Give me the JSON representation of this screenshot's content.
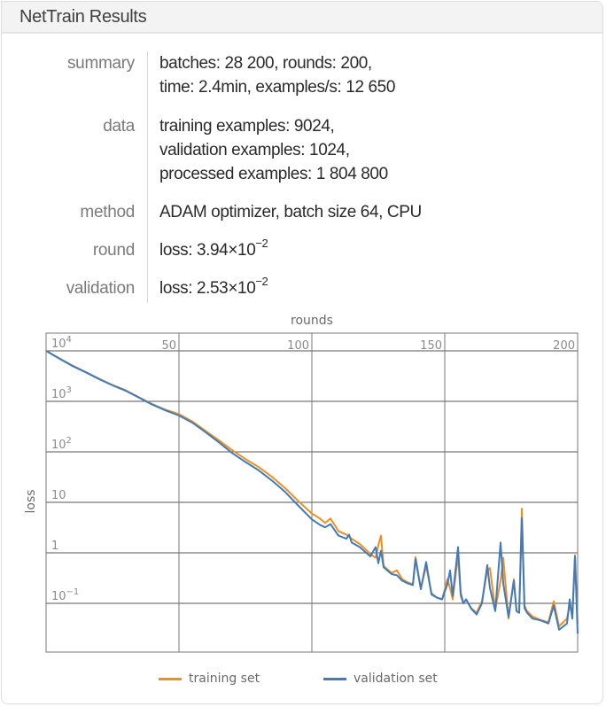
{
  "window": {
    "title": "NetTrain Results"
  },
  "info": {
    "rows": [
      {
        "label": "summary",
        "lines": [
          "batches: 28 200, rounds: 200,",
          "time: 2.4min, examples/s: 12 650"
        ]
      },
      {
        "label": "data",
        "lines": [
          "training examples: 9024,",
          "validation examples: 1024,",
          "processed examples: 1 804 800"
        ]
      },
      {
        "label": "method",
        "lines": [
          "ADAM optimizer, batch size 64, CPU"
        ]
      },
      {
        "label": "round",
        "prefix": "loss: 3.94×10",
        "exponent": "−2"
      },
      {
        "label": "validation",
        "prefix": "loss: 2.53×10",
        "exponent": "−2"
      }
    ]
  },
  "colors": {
    "training": "#f28e1c",
    "validation": "#3e7bbf",
    "grid": "#555555",
    "frame": "#777777",
    "tick": "#8a8a8a"
  },
  "chart_data": {
    "type": "line",
    "title": "",
    "xlabel": "rounds",
    "ylabel": "loss",
    "xscale": "linear",
    "yscale": "log",
    "xlim": [
      0,
      200
    ],
    "ylim": [
      0.01,
      20000
    ],
    "x_ticks": [
      50,
      100,
      150,
      200
    ],
    "y_ticks": [
      {
        "value": 10000,
        "base": "10",
        "exp": "4"
      },
      {
        "value": 1000,
        "base": "10",
        "exp": "3"
      },
      {
        "value": 100,
        "base": "10",
        "exp": "2"
      },
      {
        "value": 10,
        "base": "10",
        "exp": ""
      },
      {
        "value": 1,
        "base": "1",
        "exp": ""
      },
      {
        "value": 0.1,
        "base": "10",
        "exp": "−1"
      }
    ],
    "grid": true,
    "legend_position": "bottom",
    "series": [
      {
        "name": "training set",
        "color": "#f28e1c",
        "x": [
          0,
          5,
          10,
          15,
          20,
          25,
          30,
          35,
          40,
          45,
          50,
          55,
          60,
          65,
          70,
          75,
          80,
          85,
          90,
          95,
          100,
          103,
          105,
          107,
          110,
          113,
          115,
          118,
          120,
          122,
          124,
          125,
          126,
          127,
          130,
          132,
          134,
          136,
          138,
          139,
          141,
          143,
          145,
          147,
          149,
          151,
          152,
          153,
          155,
          156,
          157,
          158,
          160,
          162,
          164,
          166,
          167,
          169,
          171,
          172,
          174,
          176,
          177,
          178,
          179,
          180,
          181,
          183,
          186,
          189,
          191,
          193,
          196,
          197,
          198,
          199,
          200
        ],
        "values": [
          10000,
          7100,
          5100,
          3800,
          2800,
          2100,
          1650,
          1200,
          880,
          680,
          560,
          400,
          260,
          170,
          108,
          72,
          50,
          32,
          19,
          10.5,
          6.0,
          4.8,
          3.9,
          4.8,
          2.7,
          2.3,
          1.9,
          1.5,
          1.2,
          0.95,
          0.8,
          1.4,
          2.2,
          0.55,
          0.4,
          0.45,
          0.3,
          0.26,
          0.24,
          0.82,
          0.2,
          0.55,
          0.16,
          0.13,
          0.12,
          0.3,
          0.2,
          0.12,
          0.9,
          0.14,
          0.1,
          0.12,
          0.08,
          0.065,
          0.11,
          0.45,
          0.5,
          0.075,
          0.28,
          0.8,
          0.05,
          0.3,
          0.07,
          0.065,
          7.5,
          0.09,
          0.07,
          0.055,
          0.047,
          0.042,
          0.11,
          0.035,
          0.05,
          0.09,
          0.06,
          0.9,
          0.0394
        ]
      },
      {
        "name": "validation set",
        "color": "#3e7bbf",
        "x": [
          0,
          5,
          10,
          15,
          20,
          25,
          30,
          35,
          40,
          45,
          50,
          55,
          60,
          65,
          70,
          75,
          80,
          85,
          90,
          95,
          100,
          103,
          105,
          107,
          110,
          113,
          114,
          115,
          118,
          120,
          122,
          124,
          125,
          126,
          127,
          130,
          132,
          134,
          136,
          138,
          139,
          141,
          143,
          145,
          147,
          149,
          151,
          152,
          153,
          155,
          156,
          157,
          158,
          160,
          162,
          164,
          166,
          167,
          169,
          171,
          172,
          174,
          176,
          177,
          178,
          179,
          180,
          181,
          183,
          186,
          189,
          191,
          193,
          196,
          197,
          198,
          199,
          200
        ],
        "values": [
          10000,
          7000,
          5000,
          3750,
          2750,
          2080,
          1620,
          1180,
          860,
          660,
          525,
          380,
          245,
          155,
          95,
          63,
          43,
          27,
          16,
          8.5,
          4.6,
          3.6,
          3.2,
          3.7,
          2.2,
          1.9,
          2.3,
          1.6,
          1.3,
          1.05,
          0.85,
          1.3,
          0.62,
          1.1,
          0.52,
          0.38,
          0.36,
          0.28,
          0.25,
          0.23,
          0.75,
          0.19,
          0.66,
          0.15,
          0.13,
          0.12,
          0.24,
          0.45,
          0.14,
          1.3,
          0.16,
          0.1,
          0.12,
          0.078,
          0.06,
          0.1,
          0.57,
          0.2,
          0.07,
          1.6,
          0.25,
          0.054,
          0.28,
          0.07,
          0.065,
          4.9,
          0.08,
          0.065,
          0.05,
          0.046,
          0.04,
          0.09,
          0.03,
          0.04,
          0.12,
          0.05,
          0.85,
          0.0253
        ]
      }
    ]
  }
}
